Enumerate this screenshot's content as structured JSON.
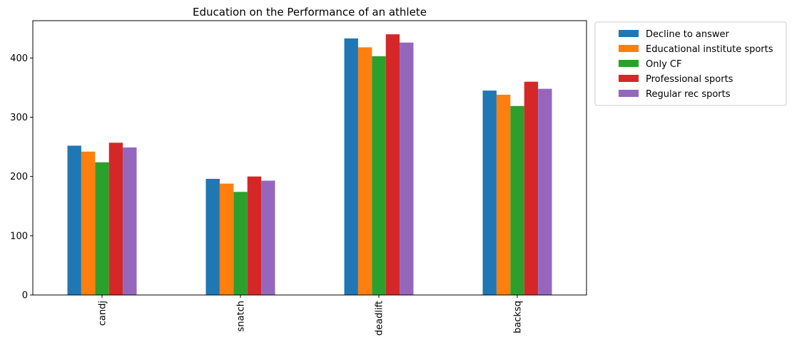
{
  "chart_data": {
    "type": "bar",
    "title": "Education on the Performance of an athlete",
    "xlabel": "",
    "ylabel": "",
    "categories": [
      "candj",
      "snatch",
      "deadlift",
      "backsq"
    ],
    "ylim": [
      0,
      463
    ],
    "yticks": [
      0,
      100,
      200,
      300,
      400
    ],
    "grid": false,
    "legend_position": "outside-top-right",
    "series": [
      {
        "name": "Decline to answer",
        "color": "#1f77b4",
        "values": [
          252,
          196,
          433,
          345
        ]
      },
      {
        "name": "Educational institute sports",
        "color": "#ff7f0e",
        "values": [
          242,
          188,
          418,
          338
        ]
      },
      {
        "name": "Only CF",
        "color": "#2ca02c",
        "values": [
          224,
          174,
          403,
          319
        ]
      },
      {
        "name": "Professional sports",
        "color": "#d62728",
        "values": [
          257,
          200,
          440,
          360
        ]
      },
      {
        "name": "Regular rec sports",
        "color": "#9467bd",
        "values": [
          249,
          193,
          426,
          348
        ]
      }
    ]
  }
}
